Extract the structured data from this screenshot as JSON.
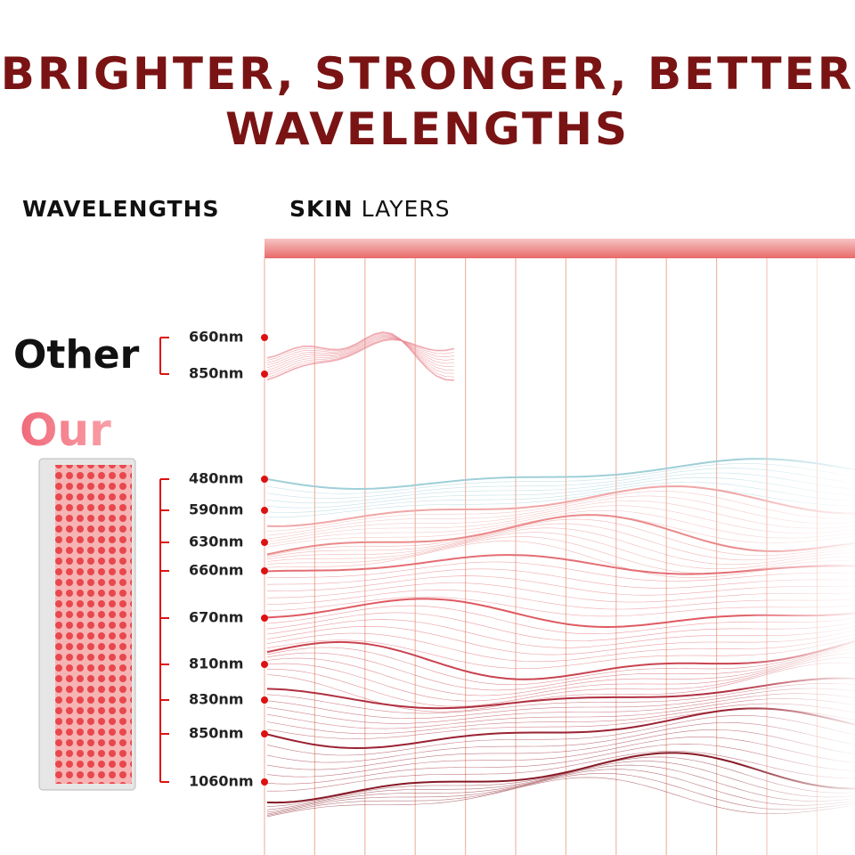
{
  "title": [
    "BRIGHTER, STRONGER, BETTER",
    "WAVELENGTHS"
  ],
  "headers": {
    "wavelengths": "WAVELENGTHS",
    "skin": "SKIN",
    "layers": "LAYERS"
  },
  "other": {
    "label": "Other",
    "wavelengths": [
      "660nm",
      "850nm"
    ]
  },
  "our": {
    "label": "Our",
    "wavelengths": [
      "480nm",
      "590nm",
      "630nm",
      "660nm",
      "670nm",
      "810nm",
      "830nm",
      "850nm",
      "1060nm"
    ]
  }
}
